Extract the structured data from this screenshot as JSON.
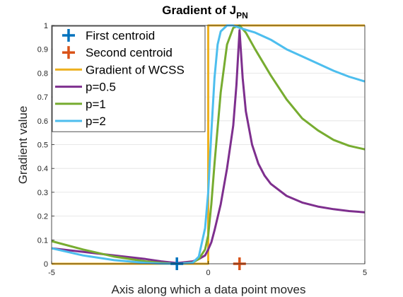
{
  "chart_data": {
    "type": "line",
    "title_main": "Gradient of J",
    "title_sub": "PN",
    "xlabel": "Axis along which a data point moves",
    "ylabel": "Gradient value",
    "xlim": [
      -5,
      5
    ],
    "ylim": [
      0,
      1
    ],
    "xticks": [
      "-5",
      "0",
      "5"
    ],
    "xtick_values": [
      -5,
      0,
      5
    ],
    "yticks": [
      "0",
      "0.1",
      "0.2",
      "0.3",
      "0.4",
      "0.5",
      "0.6",
      "0.7",
      "0.8",
      "0.9",
      "1"
    ],
    "ytick_values": [
      0,
      0.1,
      0.2,
      0.3,
      0.4,
      0.5,
      0.6,
      0.7,
      0.8,
      0.9,
      1
    ],
    "grid": true,
    "legend_position": "top-left",
    "markers": [
      {
        "name": "First centroid",
        "x": -1,
        "y": 0,
        "color": "#0072BD"
      },
      {
        "name": "Second centroid",
        "x": 1,
        "y": 0,
        "color": "#D95319"
      }
    ],
    "series": [
      {
        "name": "Gradient of WCSS",
        "color": "#EDB120",
        "x": [
          -5,
          0,
          0,
          5
        ],
        "y": [
          0,
          0,
          1,
          1
        ]
      },
      {
        "name": "p=0.5",
        "color": "#7E2F8E",
        "x": [
          -5,
          -4,
          -3,
          -2,
          -1.5,
          -1,
          -0.5,
          -0.3,
          -0.1,
          0,
          0.1,
          0.2,
          0.4,
          0.6,
          0.8,
          0.9,
          1,
          1.1,
          1.2,
          1.4,
          1.6,
          1.8,
          2,
          2.5,
          3,
          3.5,
          4,
          4.5,
          5
        ],
        "y": [
          0.065,
          0.05,
          0.035,
          0.02,
          0.01,
          0.003,
          0.01,
          0.02,
          0.035,
          0.06,
          0.09,
          0.14,
          0.25,
          0.4,
          0.58,
          0.75,
          0.98,
          0.78,
          0.64,
          0.5,
          0.42,
          0.37,
          0.335,
          0.285,
          0.257,
          0.24,
          0.229,
          0.221,
          0.216
        ]
      },
      {
        "name": "p=1",
        "color": "#77AC30",
        "x": [
          -5,
          -4,
          -3,
          -2,
          -1.5,
          -1,
          -0.5,
          -0.3,
          -0.1,
          0,
          0.1,
          0.2,
          0.4,
          0.6,
          0.8,
          1,
          1.2,
          1.5,
          2,
          2.5,
          3,
          3.5,
          4,
          4.5,
          5
        ],
        "y": [
          0.095,
          0.06,
          0.03,
          0.01,
          0.004,
          0.0,
          0.005,
          0.02,
          0.06,
          0.12,
          0.25,
          0.42,
          0.72,
          0.92,
          0.99,
          1.0,
          0.97,
          0.9,
          0.79,
          0.69,
          0.61,
          0.56,
          0.52,
          0.495,
          0.48
        ]
      },
      {
        "name": "p=2",
        "color": "#4DBEEE",
        "x": [
          -5,
          -4,
          -3,
          -2,
          -1.5,
          -1,
          -0.5,
          -0.3,
          -0.1,
          0,
          0.1,
          0.2,
          0.3,
          0.4,
          0.6,
          0.8,
          1,
          1.5,
          2,
          2.5,
          3,
          3.5,
          4,
          4.5,
          5
        ],
        "y": [
          0.065,
          0.035,
          0.015,
          0.004,
          0.001,
          0.0,
          0.004,
          0.03,
          0.15,
          0.3,
          0.55,
          0.78,
          0.92,
          0.975,
          1.0,
          1.0,
          0.99,
          0.97,
          0.94,
          0.9,
          0.87,
          0.84,
          0.81,
          0.785,
          0.765
        ]
      }
    ]
  }
}
